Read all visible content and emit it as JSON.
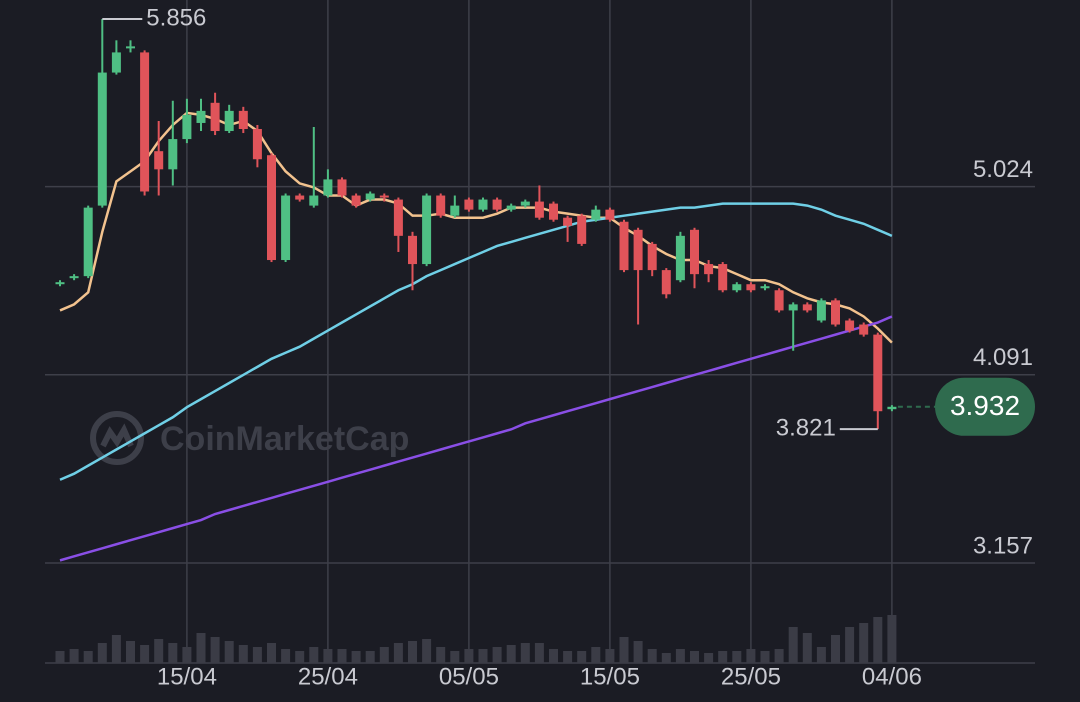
{
  "chart_data": {
    "type": "candlestick",
    "categories": [
      null,
      null,
      null,
      null,
      null,
      null,
      null,
      null,
      null,
      "15/04",
      null,
      null,
      null,
      null,
      null,
      null,
      null,
      null,
      null,
      "25/04",
      null,
      null,
      null,
      null,
      null,
      null,
      null,
      null,
      null,
      "05/05",
      null,
      null,
      null,
      null,
      null,
      null,
      null,
      null,
      null,
      "15/05",
      null,
      null,
      null,
      null,
      null,
      null,
      null,
      null,
      null,
      "25/05",
      null,
      null,
      null,
      null,
      null,
      null,
      null,
      null,
      null,
      "04/06"
    ],
    "open": [
      4.54,
      4.57,
      4.58,
      4.93,
      5.59,
      5.71,
      5.69,
      5.2,
      5.11,
      5.26,
      5.34,
      5.44,
      5.3,
      5.4,
      5.31,
      5.18,
      4.66,
      4.98,
      4.93,
      4.98,
      5.06,
      4.98,
      4.96,
      4.98,
      4.96,
      4.78,
      4.64,
      4.98,
      4.88,
      4.96,
      4.91,
      4.96,
      4.91,
      4.93,
      4.95,
      4.94,
      4.87,
      4.88,
      4.86,
      4.91,
      4.85,
      4.81,
      4.74,
      4.61,
      4.56,
      4.81,
      4.64,
      4.64,
      4.51,
      4.54,
      4.52,
      4.51,
      4.41,
      4.44,
      4.36,
      4.46,
      4.36,
      4.34,
      4.29,
      3.92
    ],
    "high": [
      4.56,
      4.59,
      4.93,
      5.856,
      5.75,
      5.75,
      5.7,
      5.35,
      5.45,
      5.46,
      5.46,
      5.49,
      5.43,
      5.42,
      5.33,
      5.19,
      4.99,
      4.99,
      5.32,
      5.11,
      5.07,
      4.99,
      5.0,
      4.99,
      4.97,
      4.8,
      4.99,
      4.99,
      4.98,
      4.97,
      4.97,
      4.97,
      4.94,
      4.96,
      5.03,
      4.95,
      4.88,
      4.89,
      4.93,
      4.92,
      4.86,
      4.82,
      4.75,
      4.62,
      4.8,
      4.82,
      4.66,
      4.65,
      4.55,
      4.55,
      4.54,
      4.52,
      4.45,
      4.45,
      4.47,
      4.47,
      4.37,
      4.35,
      4.3,
      3.94
    ],
    "low": [
      4.53,
      4.56,
      4.57,
      4.92,
      5.58,
      5.69,
      4.98,
      4.98,
      5.03,
      5.24,
      5.3,
      5.28,
      5.29,
      5.29,
      5.12,
      4.65,
      4.65,
      4.95,
      4.92,
      4.97,
      4.97,
      4.92,
      4.95,
      4.95,
      4.7,
      4.51,
      4.63,
      4.87,
      4.87,
      4.9,
      4.9,
      4.9,
      4.9,
      4.92,
      4.86,
      4.85,
      4.75,
      4.73,
      4.85,
      4.85,
      4.6,
      4.34,
      4.58,
      4.47,
      4.55,
      4.52,
      4.55,
      4.5,
      4.5,
      4.5,
      4.51,
      4.4,
      4.21,
      4.4,
      4.35,
      4.33,
      4.3,
      4.28,
      3.821,
      3.91
    ],
    "close": [
      4.55,
      4.58,
      4.92,
      5.59,
      5.69,
      5.72,
      5.0,
      5.11,
      5.26,
      5.38,
      5.4,
      5.3,
      5.4,
      5.31,
      5.16,
      4.66,
      4.98,
      4.96,
      4.98,
      5.06,
      4.98,
      4.93,
      4.99,
      4.97,
      4.78,
      4.64,
      4.98,
      4.88,
      4.93,
      4.91,
      4.96,
      4.91,
      4.93,
      4.95,
      4.87,
      4.86,
      4.83,
      4.74,
      4.91,
      4.86,
      4.61,
      4.61,
      4.61,
      4.49,
      4.78,
      4.59,
      4.59,
      4.51,
      4.54,
      4.51,
      4.53,
      4.41,
      4.44,
      4.41,
      4.46,
      4.34,
      4.31,
      4.29,
      3.91,
      3.932
    ],
    "up_color": "#4fbf84",
    "down_color": "#e0545a",
    "lines": [
      {
        "color": "#f2c28e",
        "values": [
          4.41,
          4.44,
          4.5,
          4.8,
          5.05,
          5.1,
          5.15,
          5.25,
          5.33,
          5.39,
          5.38,
          5.36,
          5.33,
          5.35,
          5.3,
          5.19,
          5.1,
          5.04,
          5.02,
          4.98,
          4.98,
          4.93,
          4.96,
          4.96,
          4.94,
          4.88,
          4.88,
          4.89,
          4.87,
          4.87,
          4.87,
          4.89,
          4.92,
          4.92,
          4.92,
          4.9,
          4.89,
          4.88,
          4.87,
          4.87,
          4.82,
          4.78,
          4.73,
          4.69,
          4.66,
          4.66,
          4.63,
          4.62,
          4.59,
          4.56,
          4.56,
          4.54,
          4.5,
          4.47,
          4.45,
          4.44,
          4.42,
          4.38,
          4.32,
          4.25
        ]
      },
      {
        "color": "#6fcfe6",
        "values": [
          3.57,
          3.6,
          3.64,
          3.68,
          3.72,
          3.76,
          3.8,
          3.84,
          3.88,
          3.93,
          3.97,
          4.01,
          4.05,
          4.09,
          4.13,
          4.17,
          4.2,
          4.23,
          4.27,
          4.31,
          4.35,
          4.39,
          4.43,
          4.47,
          4.51,
          4.54,
          4.58,
          4.61,
          4.64,
          4.67,
          4.7,
          4.73,
          4.75,
          4.77,
          4.79,
          4.81,
          4.83,
          4.85,
          4.86,
          4.87,
          4.88,
          4.89,
          4.9,
          4.91,
          4.92,
          4.92,
          4.93,
          4.94,
          4.94,
          4.94,
          4.94,
          4.94,
          4.94,
          4.93,
          4.91,
          4.88,
          4.86,
          4.84,
          4.81,
          4.78
        ]
      },
      {
        "color": "#8a4fe6",
        "values": [
          3.17,
          3.19,
          3.21,
          3.23,
          3.25,
          3.27,
          3.29,
          3.31,
          3.33,
          3.35,
          3.37,
          3.4,
          3.42,
          3.44,
          3.46,
          3.48,
          3.5,
          3.52,
          3.54,
          3.56,
          3.58,
          3.6,
          3.62,
          3.64,
          3.66,
          3.68,
          3.7,
          3.72,
          3.74,
          3.76,
          3.78,
          3.8,
          3.82,
          3.85,
          3.87,
          3.89,
          3.91,
          3.93,
          3.95,
          3.97,
          3.99,
          4.01,
          4.03,
          4.05,
          4.07,
          4.09,
          4.11,
          4.13,
          4.15,
          4.17,
          4.19,
          4.21,
          4.23,
          4.25,
          4.27,
          4.29,
          4.31,
          4.33,
          4.35,
          4.38
        ]
      }
    ],
    "volume": [
      12,
      14,
      12,
      20,
      28,
      22,
      18,
      24,
      20,
      16,
      30,
      26,
      22,
      18,
      16,
      20,
      14,
      12,
      16,
      14,
      14,
      12,
      12,
      16,
      20,
      22,
      24,
      16,
      12,
      14,
      14,
      16,
      18,
      20,
      20,
      14,
      12,
      12,
      16,
      14,
      26,
      22,
      14,
      10,
      14,
      12,
      10,
      12,
      12,
      14,
      12,
      14,
      36,
      30,
      16,
      28,
      36,
      40,
      46,
      48
    ],
    "volume_color": "#3b3c46",
    "volume_ylim": [
      0,
      100
    ],
    "ylim": [
      3.157,
      5.95
    ],
    "yticks": [
      3.157,
      4.091,
      5.024
    ],
    "grid": true,
    "high_value": 5.856,
    "low_value": 3.821,
    "last_price": 3.932,
    "badge_color": "#2f6b4e",
    "watermark": "CoinMarketCap"
  }
}
